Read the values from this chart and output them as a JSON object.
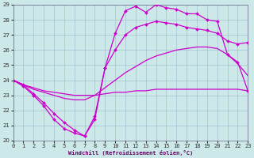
{
  "xlabel": "Windchill (Refroidissement éolien,°C)",
  "xlim": [
    0,
    23
  ],
  "ylim": [
    20,
    29
  ],
  "xticks": [
    0,
    1,
    2,
    3,
    4,
    5,
    6,
    7,
    8,
    9,
    10,
    11,
    12,
    13,
    14,
    15,
    16,
    17,
    18,
    19,
    20,
    21,
    22,
    23
  ],
  "yticks": [
    20,
    21,
    22,
    23,
    24,
    25,
    26,
    27,
    28,
    29
  ],
  "bg_color": "#cce8e8",
  "line_color": "#cc00cc",
  "grid_color": "#99bbcc",
  "lines": [
    {
      "x": [
        0,
        1,
        2,
        3,
        4,
        5,
        6,
        7,
        8,
        9,
        10,
        11,
        12,
        13,
        14,
        15,
        16,
        17,
        18,
        19,
        20,
        21,
        22,
        23
      ],
      "y": [
        24.0,
        23.7,
        23.5,
        23.3,
        23.2,
        23.1,
        23.0,
        23.0,
        23.0,
        23.1,
        23.2,
        23.2,
        23.3,
        23.3,
        23.4,
        23.4,
        23.4,
        23.4,
        23.4,
        23.4,
        23.4,
        23.4,
        23.4,
        23.3
      ],
      "marker": null,
      "lw": 0.9
    },
    {
      "x": [
        0,
        1,
        2,
        3,
        4,
        5,
        6,
        7,
        8,
        9,
        10,
        11,
        12,
        13,
        14,
        15,
        16,
        17,
        18,
        19,
        20,
        21,
        22,
        23
      ],
      "y": [
        24.0,
        23.7,
        23.4,
        23.2,
        23.0,
        22.8,
        22.7,
        22.7,
        23.0,
        23.5,
        24.0,
        24.5,
        24.9,
        25.3,
        25.6,
        25.8,
        26.0,
        26.1,
        26.2,
        26.2,
        26.1,
        25.7,
        25.1,
        24.3
      ],
      "marker": null,
      "lw": 0.9
    },
    {
      "x": [
        0,
        1,
        2,
        3,
        4,
        5,
        6,
        7,
        8,
        9,
        10,
        11,
        12,
        13,
        14,
        15,
        16,
        17,
        18,
        19,
        20,
        21,
        22,
        23
      ],
      "y": [
        24.0,
        23.7,
        23.1,
        22.5,
        21.8,
        21.2,
        20.7,
        20.3,
        21.6,
        24.8,
        26.0,
        27.0,
        27.5,
        27.7,
        27.9,
        27.8,
        27.7,
        27.5,
        27.4,
        27.3,
        27.1,
        26.6,
        26.4,
        26.5
      ],
      "marker": "D",
      "markersize": 2.0,
      "lw": 0.9
    },
    {
      "x": [
        0,
        1,
        2,
        3,
        4,
        5,
        6,
        7,
        8,
        9,
        10,
        11,
        12,
        13,
        14,
        15,
        16,
        17,
        18,
        19,
        20,
        21,
        22,
        23
      ],
      "y": [
        24.0,
        23.6,
        23.0,
        22.3,
        21.4,
        20.8,
        20.5,
        20.3,
        21.4,
        24.8,
        27.1,
        28.6,
        28.9,
        28.5,
        29.0,
        28.8,
        28.7,
        28.4,
        28.4,
        28.0,
        27.9,
        25.7,
        25.2,
        23.3
      ],
      "marker": "D",
      "markersize": 2.0,
      "lw": 0.9
    }
  ]
}
